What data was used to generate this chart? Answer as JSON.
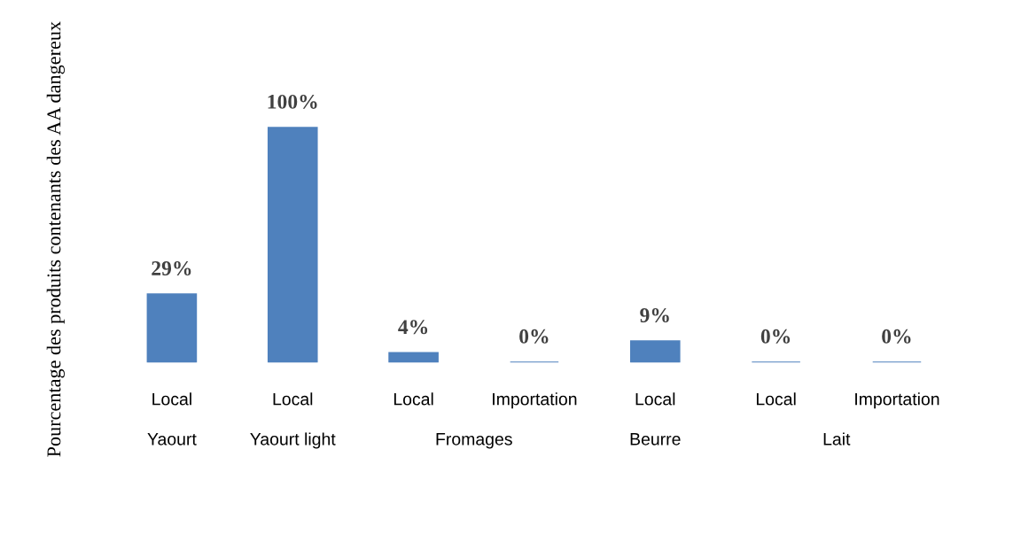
{
  "chart_data": {
    "type": "bar",
    "ylabel": "Pourcentage des produits contenants des AA dangereux",
    "categories": [
      "Yaourt",
      "Yaourt light",
      "Fromages",
      "Beurre",
      "Lait"
    ],
    "series": [
      {
        "name": "Local",
        "color": "#4f81bd",
        "values": [
          29,
          100,
          4,
          9,
          0
        ],
        "value_labels": [
          "29%",
          "100%",
          "4%",
          "9%",
          "0%"
        ]
      },
      {
        "name": "Importation",
        "color": "#4f81bd",
        "values": [
          null,
          null,
          0,
          null,
          0
        ],
        "value_labels": [
          null,
          null,
          "0%",
          null,
          "0%"
        ]
      }
    ],
    "tick_labels": "x"
  }
}
